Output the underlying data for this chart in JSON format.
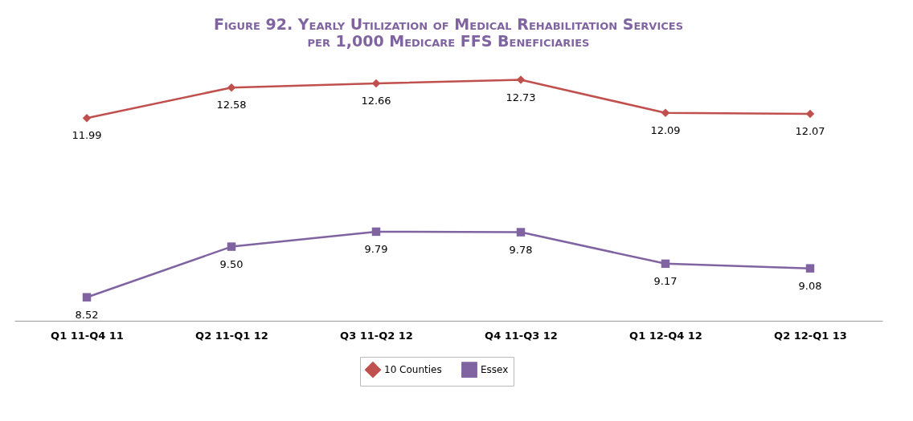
{
  "chart_data": {
    "type": "line",
    "title": "Figure 92. Yearly Utilization of Medical Rehabilitation Services\nper 1,000 Medicare FFS Beneficiaries",
    "categories": [
      "Q1 11-Q4 11",
      "Q2 11-Q1 12",
      "Q3 11-Q2 12",
      "Q4 11-Q3 12",
      "Q1 12-Q4 12",
      "Q2 12-Q1 13"
    ],
    "series": [
      {
        "name": "10 Counties",
        "color": "#c0504d",
        "marker": "diamond",
        "values": [
          11.99,
          12.58,
          12.66,
          12.73,
          12.09,
          12.07
        ],
        "value_labels": [
          "11.99",
          "12.58",
          "12.66",
          "12.73",
          "12.09",
          "12.07"
        ]
      },
      {
        "name": "Essex",
        "color": "#8064a2",
        "marker": "square",
        "values": [
          8.52,
          9.5,
          9.79,
          9.78,
          9.17,
          9.08
        ],
        "value_labels": [
          "8.52",
          "9.50",
          "9.79",
          "9.78",
          "9.17",
          "9.08"
        ]
      }
    ],
    "grid": false,
    "legend": "bottom"
  }
}
